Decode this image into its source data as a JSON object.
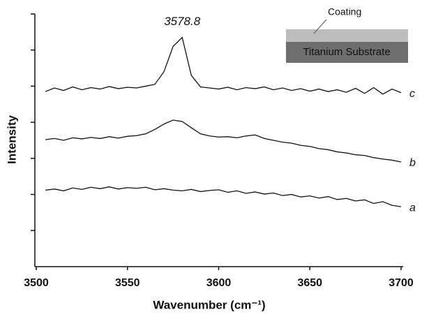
{
  "chart_data": {
    "type": "line",
    "x_label": "Wavenumber (cm⁻¹)",
    "y_label": "Intensity",
    "annotation": "3578.8",
    "inset": {
      "coating": "Coating",
      "substrate": "Titanium Substrate"
    },
    "x": [
      3505,
      3510,
      3515,
      3520,
      3525,
      3530,
      3535,
      3540,
      3545,
      3550,
      3555,
      3560,
      3565,
      3570,
      3575,
      3580,
      3585,
      3590,
      3595,
      3600,
      3605,
      3610,
      3615,
      3620,
      3625,
      3630,
      3635,
      3640,
      3645,
      3650,
      3655,
      3660,
      3665,
      3670,
      3675,
      3680,
      3685,
      3690,
      3695,
      3700
    ],
    "series": [
      {
        "name": "a",
        "color": "#111111",
        "values": [
          2.12,
          2.15,
          2.1,
          2.18,
          2.14,
          2.2,
          2.16,
          2.21,
          2.15,
          2.19,
          2.17,
          2.2,
          2.13,
          2.16,
          2.12,
          2.1,
          2.14,
          2.08,
          2.11,
          2.13,
          2.06,
          2.1,
          2.03,
          2.07,
          2.01,
          2.04,
          1.97,
          2.0,
          1.93,
          1.96,
          1.9,
          1.94,
          1.86,
          1.89,
          1.82,
          1.85,
          1.75,
          1.8,
          1.7,
          1.66
        ]
      },
      {
        "name": "b",
        "color": "#111111",
        "values": [
          3.52,
          3.55,
          3.5,
          3.57,
          3.54,
          3.58,
          3.55,
          3.6,
          3.56,
          3.61,
          3.63,
          3.68,
          3.8,
          3.95,
          4.06,
          4.02,
          3.85,
          3.68,
          3.62,
          3.59,
          3.6,
          3.57,
          3.62,
          3.65,
          3.55,
          3.5,
          3.45,
          3.42,
          3.36,
          3.33,
          3.27,
          3.24,
          3.18,
          3.15,
          3.1,
          3.08,
          3.02,
          2.98,
          2.95,
          2.9
        ]
      },
      {
        "name": "c",
        "color": "#111111",
        "values": [
          4.85,
          4.95,
          4.88,
          4.98,
          4.9,
          4.96,
          4.92,
          4.99,
          4.93,
          4.97,
          4.95,
          5.0,
          5.05,
          5.4,
          6.1,
          6.35,
          5.3,
          4.98,
          4.95,
          4.92,
          4.97,
          4.9,
          4.96,
          4.93,
          4.98,
          4.9,
          4.95,
          4.88,
          4.93,
          4.86,
          4.92,
          4.85,
          4.9,
          4.83,
          4.94,
          4.8,
          4.96,
          4.78,
          4.92,
          4.82
        ]
      }
    ],
    "xlim": [
      3500,
      3700
    ],
    "xticks": [
      3500,
      3550,
      3600,
      3650,
      3700
    ],
    "ylim": [
      0,
      7
    ],
    "yticks": [
      1,
      2,
      3,
      4,
      5,
      6,
      7
    ]
  }
}
